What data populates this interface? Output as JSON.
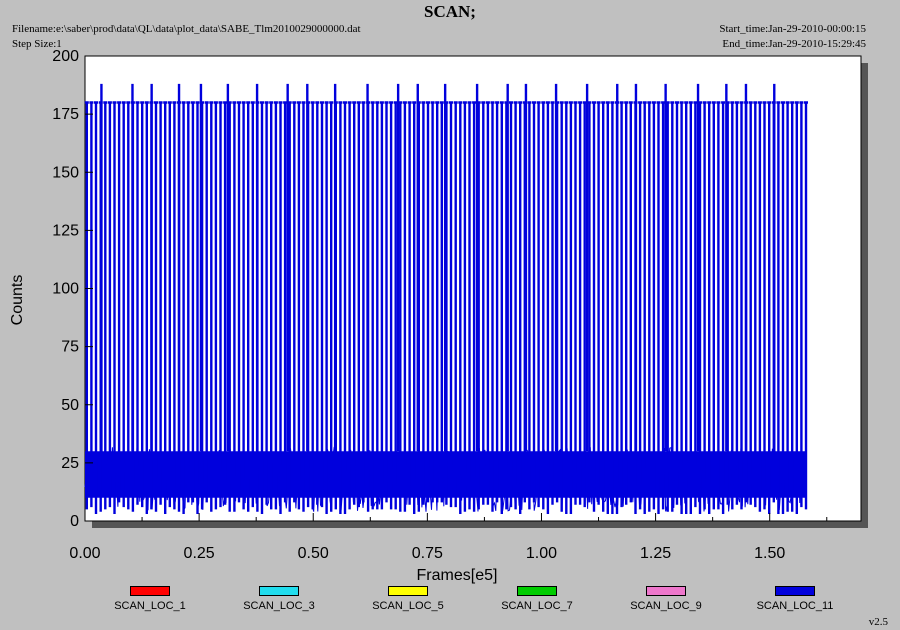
{
  "header": {
    "title": "SCAN;",
    "filename": "Filename:e:\\saber\\prod\\data\\QL\\data\\plot_data\\SABE_Tlm2010029000000.dat",
    "step_size": "Step Size:1",
    "start_time": "Start_time:Jan-29-2010-00:00:15",
    "end_time": "End_time:Jan-29-2010-15:29:45"
  },
  "footer": {
    "version": "v2.5"
  },
  "chart_data": {
    "type": "line",
    "title": "SCAN;",
    "xlabel": "Frames[e5]",
    "ylabel": "Counts",
    "xlim": [
      0,
      1.7
    ],
    "ylim": [
      0,
      200
    ],
    "x_ticks": [
      "0.00",
      "0.25",
      "0.50",
      "0.75",
      "1.00",
      "1.25",
      "1.50"
    ],
    "y_ticks": [
      "0",
      "25",
      "50",
      "75",
      "100",
      "125",
      "150",
      "175",
      "200"
    ],
    "grid": false,
    "legend_position": "bottom",
    "legend": [
      {
        "name": "SCAN_LOC_1",
        "color": "#ff0000"
      },
      {
        "name": "SCAN_LOC_3",
        "color": "#22ddee"
      },
      {
        "name": "SCAN_LOC_5",
        "color": "#ffff00"
      },
      {
        "name": "SCAN_LOC_7",
        "color": "#00cc00"
      },
      {
        "name": "SCAN_LOC_9",
        "color": "#ee77cc"
      },
      {
        "name": "SCAN_LOC_11",
        "color": "#0000dd"
      }
    ],
    "series": [
      {
        "name": "SCAN_LOC_11",
        "color": "#0000dd",
        "data_range_x": [
          0.0,
          1.58
        ],
        "baseline_band": [
          10,
          30
        ],
        "scan_peak": 180,
        "spike_peak": 188,
        "spike_x": [
          0.036,
          0.104,
          0.146,
          0.206,
          0.254,
          0.313,
          0.377,
          0.444,
          0.487,
          0.548,
          0.619,
          0.686,
          0.729,
          0.789,
          0.859,
          0.926,
          0.966,
          1.032,
          1.1,
          1.166,
          1.207,
          1.272,
          1.343,
          1.405,
          1.448,
          1.51
        ]
      }
    ]
  }
}
